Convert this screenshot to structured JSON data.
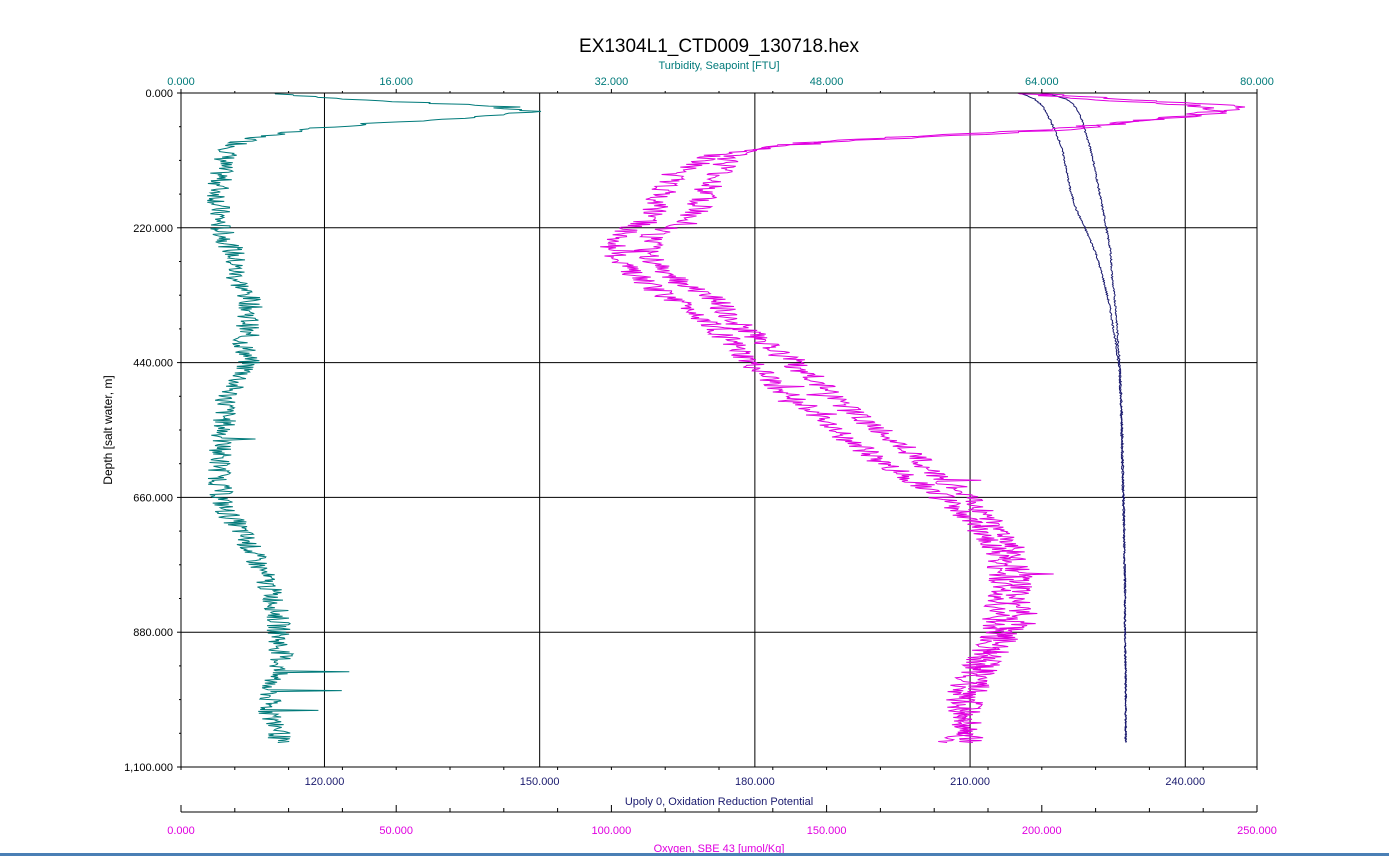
{
  "chart_data": {
    "type": "line",
    "title": "EX1304L1_CTD009_130718.hex",
    "ylabel": "Depth [salt water, m]",
    "ylim": [
      0,
      1100
    ],
    "y_ticks": [
      "0.000",
      "220.000",
      "440.000",
      "660.000",
      "880.000",
      "1,100.000"
    ],
    "y_tick_values": [
      0,
      220,
      440,
      660,
      880,
      1100
    ],
    "grid": true,
    "axes": {
      "turbidity": {
        "label": "Turbidity, Seapoint [FTU]",
        "range": [
          0,
          80
        ],
        "ticks": [
          "0.000",
          "16.000",
          "32.000",
          "48.000",
          "64.000",
          "80.000"
        ],
        "tick_values": [
          0,
          16,
          32,
          48,
          64,
          80
        ],
        "color": "#007a7a",
        "position": "top"
      },
      "orp": {
        "label": "Upoly 0, Oxidation Reduction Potential",
        "range": [
          100,
          250
        ],
        "ticks": [
          "120.000",
          "150.000",
          "180.000",
          "210.000",
          "240.000"
        ],
        "tick_values": [
          120,
          150,
          180,
          210,
          240
        ],
        "color": "#1a1a6e",
        "position": "bottom"
      },
      "oxygen": {
        "label": "Oxygen, SBE 43 [umol/Kg]",
        "range": [
          0,
          250
        ],
        "ticks": [
          "0.000",
          "50.000",
          "100.000",
          "150.000",
          "200.000",
          "250.000"
        ],
        "tick_values": [
          0,
          50,
          100,
          150,
          200,
          250
        ],
        "color": "#e000e0",
        "position": "bottom"
      }
    },
    "series": [
      {
        "axis": "turbidity",
        "color": "#007a7a",
        "depth": [
          0,
          10,
          20,
          30,
          40,
          50,
          60,
          70,
          80,
          90,
          100,
          120,
          140,
          160,
          180,
          200,
          220,
          240,
          260,
          280,
          300,
          320,
          340,
          360,
          380,
          400,
          420,
          440,
          460,
          480,
          500,
          520,
          540,
          560,
          580,
          600,
          620,
          640,
          660,
          680,
          700,
          720,
          740,
          760,
          780,
          800,
          820,
          840,
          860,
          880,
          900,
          920,
          940,
          960,
          980,
          1000,
          1020,
          1040,
          1060
        ],
        "values": [
          7,
          12,
          22,
          26,
          22,
          14,
          9,
          6,
          4.5,
          3.8,
          3.4,
          3,
          2.9,
          2.8,
          2.8,
          2.8,
          2.9,
          3.4,
          3.9,
          4,
          4.1,
          4.6,
          5.2,
          5.1,
          5,
          4.5,
          4.8,
          5,
          4.6,
          3.8,
          3.4,
          3.3,
          3.2,
          3.1,
          3,
          2.9,
          2.9,
          2.9,
          3,
          3.2,
          4,
          4.6,
          5.1,
          5.5,
          6,
          6.4,
          6.8,
          7.1,
          7.2,
          7.3,
          7.3,
          7.5,
          7.2,
          6.8,
          6.6,
          6.5,
          6.7,
          7.4,
          7.2
        ]
      },
      {
        "axis": "orp",
        "color": "#1a1a6e",
        "depth": [
          0,
          5,
          10,
          20,
          30,
          40,
          60,
          80,
          100,
          130,
          160,
          190,
          220,
          260,
          300,
          350,
          400,
          450,
          500,
          550,
          600,
          650,
          700,
          750,
          800,
          850,
          900,
          950,
          1000,
          1060
        ],
        "values": [
          220,
          222,
          223.5,
          224.5,
          225,
          225.5,
          226,
          226.5,
          227,
          227.5,
          228,
          228.5,
          229,
          229.6,
          229.8,
          230.3,
          230.6,
          230.9,
          231.1,
          231.2,
          231.3,
          231.4,
          231.5,
          231.5,
          231.6,
          231.6,
          231.6,
          231.7,
          231.7,
          231.7
        ]
      },
      {
        "axis": "orp",
        "color": "#1a1a6e",
        "depth": [
          0,
          10,
          20,
          30,
          40,
          60,
          80,
          100,
          130,
          160,
          190,
          220,
          260,
          300,
          350,
          400,
          450,
          500,
          550,
          600,
          650,
          700,
          750,
          800,
          850,
          900,
          950,
          1000,
          1060
        ],
        "values": [
          217,
          219,
          220,
          220.5,
          221,
          221.8,
          222.5,
          223,
          223.5,
          224,
          224.8,
          226,
          227.5,
          228.5,
          229.5,
          230.2,
          230.8,
          231,
          231.1,
          231.2,
          231.3,
          231.4,
          231.5,
          231.6,
          231.6,
          231.6,
          231.7,
          231.7,
          231.7
        ]
      },
      {
        "axis": "oxygen",
        "color": "#e000e0",
        "depth": [
          0,
          10,
          20,
          30,
          40,
          60,
          80,
          100,
          130,
          160,
          190,
          210,
          230,
          260,
          290,
          320,
          350,
          380,
          410,
          440,
          470,
          500,
          530,
          560,
          590,
          620,
          650,
          680,
          710,
          740,
          770,
          800,
          830,
          860,
          890,
          920,
          950,
          980,
          1010,
          1040,
          1060
        ],
        "values": [
          195,
          210,
          235,
          240,
          230,
          205,
          150,
          125,
          115,
          112,
          110,
          108,
          102,
          100,
          104,
          110,
          118,
          124,
          128,
          132,
          137,
          143,
          148,
          154,
          160,
          167,
          175,
          180,
          185,
          189,
          190,
          190.5,
          190,
          189.5,
          188,
          186,
          183,
          181,
          181,
          182,
          184
        ]
      },
      {
        "axis": "oxygen",
        "color": "#e000e0",
        "depth": [
          0,
          10,
          20,
          30,
          40,
          60,
          80,
          100,
          130,
          160,
          190,
          210,
          230,
          260,
          290,
          320,
          350,
          380,
          410,
          440,
          470,
          500,
          530,
          560,
          590,
          620,
          650,
          680,
          710,
          740,
          770,
          800,
          830,
          860,
          890,
          920,
          950,
          980,
          1010,
          1040,
          1060
        ],
        "values": [
          200,
          218,
          245,
          243,
          232,
          200,
          145,
          128,
          125,
          122,
          120,
          118,
          110,
          108,
          112,
          120,
          126,
          130,
          136,
          142,
          148,
          152,
          158,
          164,
          170,
          175,
          181,
          186,
          190,
          193,
          194,
          195,
          194.5,
          194,
          192,
          189,
          186,
          184,
          183,
          184,
          178
        ]
      }
    ]
  }
}
